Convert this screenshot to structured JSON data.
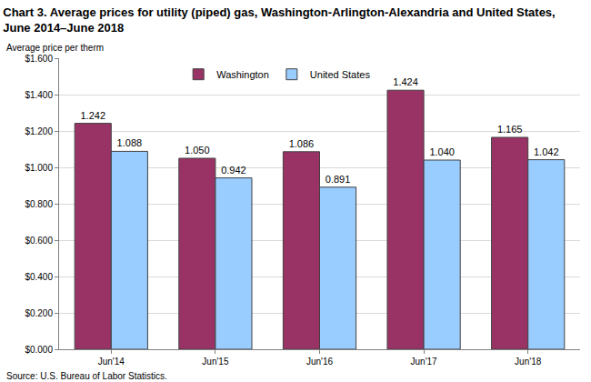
{
  "chart_data": {
    "type": "bar",
    "title": "Chart 3. Average prices for utility (piped) gas, Washington-Arlington-Alexandria and United States,\nJune 2014–June 2018",
    "y_label": "Average price per therm",
    "annotations": [
      "Source: U.S. Bureau of Labor Statistics."
    ],
    "categories": [
      "Jun'14",
      "Jun'15",
      "Jun'16",
      "Jun'17",
      "Jun'18"
    ],
    "series": [
      {
        "name": "Washington",
        "color": "#993366",
        "values": [
          1.242,
          1.05,
          1.086,
          1.424,
          1.165
        ],
        "value_labels": [
          "1.242",
          "1.050",
          "1.086",
          "1.424",
          "1.165"
        ]
      },
      {
        "name": "United States",
        "color": "#99ccff",
        "values": [
          1.088,
          0.942,
          0.891,
          1.04,
          1.042
        ],
        "value_labels": [
          "1.088",
          "0.942",
          "0.891",
          "1.040",
          "1.042"
        ]
      }
    ],
    "ylim": [
      0,
      1.6
    ],
    "yticks": [
      {
        "value": 0,
        "label": "$0.000"
      },
      {
        "value": 0.2,
        "label": "$0.200"
      },
      {
        "value": 0.4,
        "label": "$0.400"
      },
      {
        "value": 0.6,
        "label": "$0.600"
      },
      {
        "value": 0.8,
        "label": "$0.800"
      },
      {
        "value": 1.0,
        "label": "$1.000"
      },
      {
        "value": 1.2,
        "label": "$1.200"
      },
      {
        "value": 1.4,
        "label": "$1.400"
      },
      {
        "value": 1.6,
        "label": "$1.600"
      }
    ],
    "grid": true,
    "legend": "top",
    "data_labels": true
  }
}
